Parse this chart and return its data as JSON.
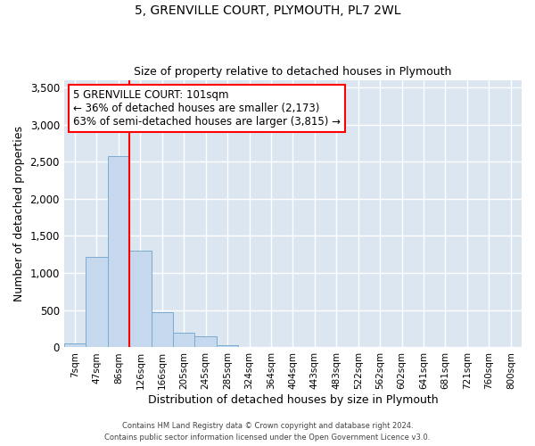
{
  "title": "5, GRENVILLE COURT, PLYMOUTH, PL7 2WL",
  "subtitle": "Size of property relative to detached houses in Plymouth",
  "xlabel": "Distribution of detached houses by size in Plymouth",
  "ylabel": "Number of detached properties",
  "bar_color": "#c5d8ed",
  "bar_edge_color": "#7aabcf",
  "background_color": "#dce6f1",
  "grid_color": "#ffffff",
  "categories": [
    "7sqm",
    "47sqm",
    "86sqm",
    "126sqm",
    "166sqm",
    "205sqm",
    "245sqm",
    "285sqm",
    "324sqm",
    "364sqm",
    "404sqm",
    "443sqm",
    "483sqm",
    "522sqm",
    "562sqm",
    "602sqm",
    "641sqm",
    "681sqm",
    "721sqm",
    "760sqm",
    "800sqm"
  ],
  "values": [
    50,
    1220,
    2580,
    1300,
    470,
    200,
    150,
    30,
    10,
    5,
    3,
    2,
    0,
    0,
    0,
    0,
    0,
    0,
    0,
    0,
    0
  ],
  "ylim": [
    0,
    3600
  ],
  "yticks": [
    0,
    500,
    1000,
    1500,
    2000,
    2500,
    3000,
    3500
  ],
  "red_line_x": 2.5,
  "annotation_text_line1": "5 GRENVILLE COURT: 101sqm",
  "annotation_text_line2": "← 36% of detached houses are smaller (2,173)",
  "annotation_text_line3": "63% of semi-detached houses are larger (3,815) →",
  "footer_line1": "Contains HM Land Registry data © Crown copyright and database right 2024.",
  "footer_line2": "Contains public sector information licensed under the Open Government Licence v3.0."
}
